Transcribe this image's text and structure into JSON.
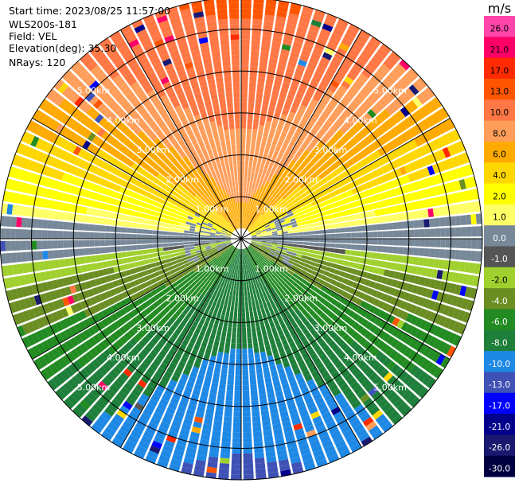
{
  "header": {
    "start_time": "Start time: 2023/08/25 11:57:00",
    "instrument": "WLS200s-181",
    "field": "Field: VEL",
    "elevation": "Elevation(deg): 35.30",
    "nrays": "NRays: 120"
  },
  "chart_data": {
    "type": "heatmap",
    "projection": "polar PPI scan",
    "field": "VEL",
    "n_rays": 120,
    "elevation_deg": 35.3,
    "range_rings_km": [
      1.0,
      2.0,
      3.0,
      4.0,
      5.0
    ],
    "range_ring_labels": [
      "1.00km",
      "2.00km",
      "3.00km",
      "4.00km",
      "5.00km"
    ],
    "colorbar": {
      "unit": "m/s",
      "tick_labels": [
        "26.0",
        "21.0",
        "17.0",
        "13.0",
        "10.0",
        "8.0",
        "6.0",
        "4.0",
        "2.0",
        "1.0",
        "0.0",
        "-1.0",
        "-2.0",
        "-4.0",
        "-6.0",
        "-8.0",
        "-10.0",
        "-13.0",
        "-17.0",
        "-21.0",
        "-26.0",
        "-30.0"
      ],
      "colors": [
        "#ff44aa",
        "#ff0066",
        "#ff2a00",
        "#ff5500",
        "#ff7744",
        "#ff9e5a",
        "#ffaa00",
        "#ffd700",
        "#ffff00",
        "#ffff66",
        "#778899",
        "#555555",
        "#a0d02e",
        "#6b8e23",
        "#228b22",
        "#1e7f3a",
        "#1e88e5",
        "#3f51b5",
        "#0000ff",
        "#00008b",
        "#191970",
        "#000040"
      ]
    },
    "wind": {
      "description_values": "Radial velocity pattern: positive (toward north/top, reds up to ~13 m/s), negative (toward south/bottom, blues down to ~-10 m/s)",
      "max_positive": 13.0,
      "max_negative": -10.0
    }
  }
}
